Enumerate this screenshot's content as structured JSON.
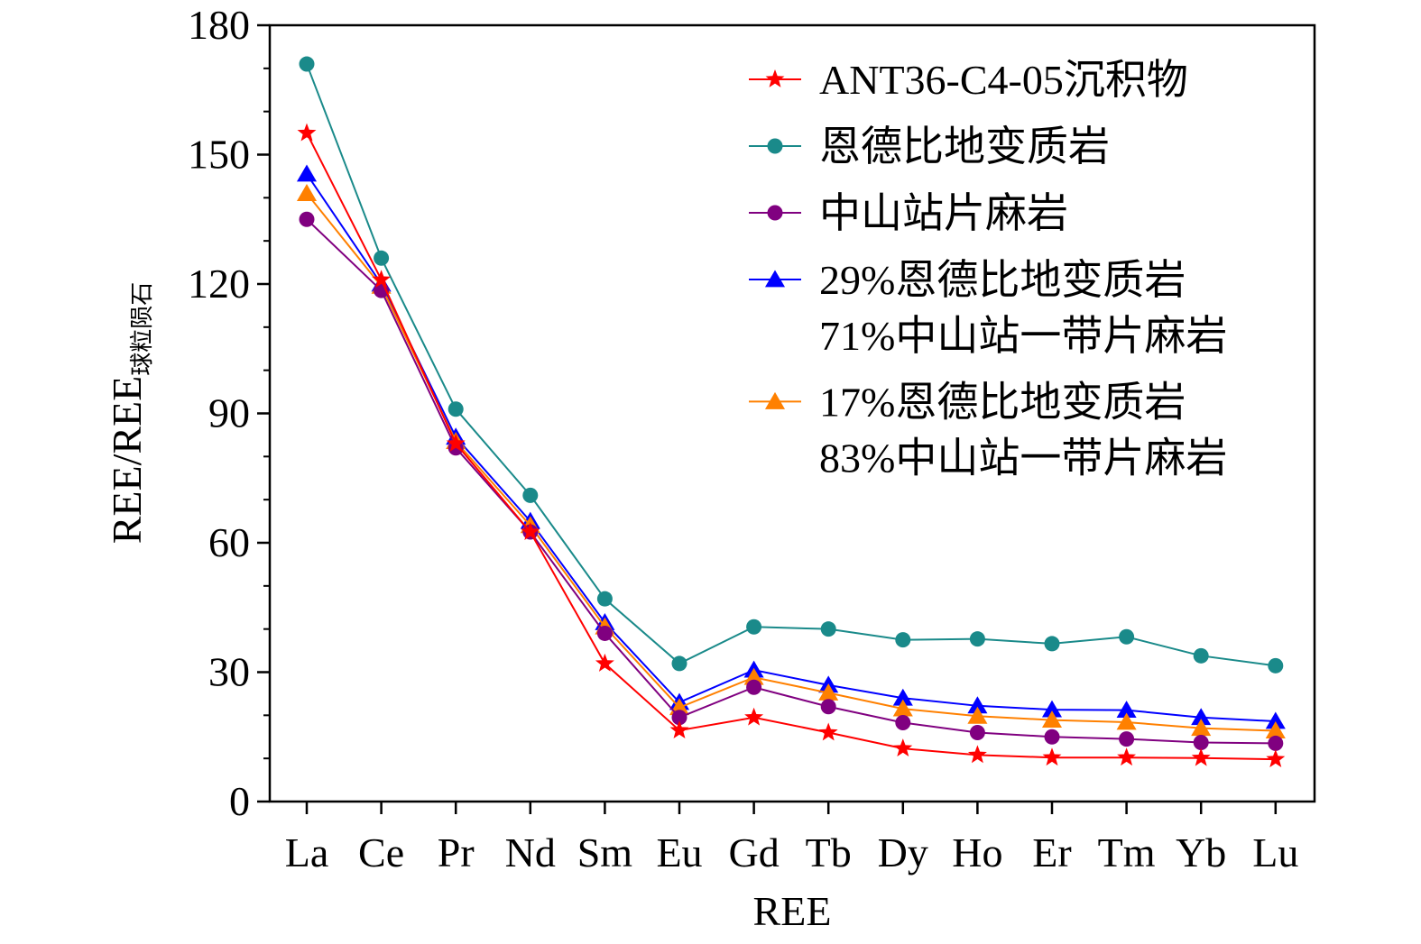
{
  "chart_data": {
    "type": "line",
    "title": "",
    "xlabel": "REE",
    "ylabel_main": "REE/REE",
    "ylabel_sub": "球粒陨石",
    "ylim": [
      0,
      180
    ],
    "yticks": [
      "0",
      "30",
      "60",
      "90",
      "120",
      "150",
      "180"
    ],
    "categories": [
      "La",
      "Ce",
      "Pr",
      "Nd",
      "Sm",
      "Eu",
      "Gd",
      "Tb",
      "Dy",
      "Ho",
      "Er",
      "Tm",
      "Yb",
      "Lu"
    ],
    "legend_position": "top-right",
    "grid": false,
    "series": [
      {
        "name": "恩德比地变质岩",
        "color": "#1a8a8a",
        "marker": "circle",
        "values": [
          171,
          126,
          91,
          71,
          47,
          32,
          40.5,
          40,
          37.5,
          37.7,
          36.6,
          38.2,
          33.8,
          31.5
        ]
      },
      {
        "name": "29%恩德比地变质岩|71%中山站一带片麻岩",
        "color": "#0000ff",
        "marker": "triangle",
        "values": [
          145.5,
          120,
          84.5,
          65,
          41.5,
          23,
          30.5,
          27,
          24,
          22.2,
          21.3,
          21.2,
          19.5,
          18.6
        ]
      },
      {
        "name": "17%恩德比地变质岩|83%中山站一带片麻岩",
        "color": "#ff8000",
        "marker": "triangle",
        "values": [
          141,
          119.5,
          83.5,
          64,
          40.5,
          21.8,
          28.8,
          25.2,
          21.5,
          19.8,
          18.9,
          18.4,
          17,
          16.4
        ]
      },
      {
        "name": "中山站片麻岩",
        "color": "#800080",
        "marker": "circle",
        "values": [
          135,
          118.5,
          82,
          62.5,
          39,
          19.5,
          26.5,
          22,
          18.3,
          16,
          15,
          14.5,
          13.7,
          13.5
        ]
      },
      {
        "name": "ANT36-C4-05沉积物",
        "color": "#ff0000",
        "marker": "star",
        "values": [
          155,
          121,
          83,
          62.5,
          32,
          16.5,
          19.5,
          16,
          12.3,
          10.8,
          10.2,
          10.2,
          10.1,
          9.8
        ]
      }
    ],
    "legend_order": [
      4,
      0,
      3,
      1,
      2
    ]
  }
}
